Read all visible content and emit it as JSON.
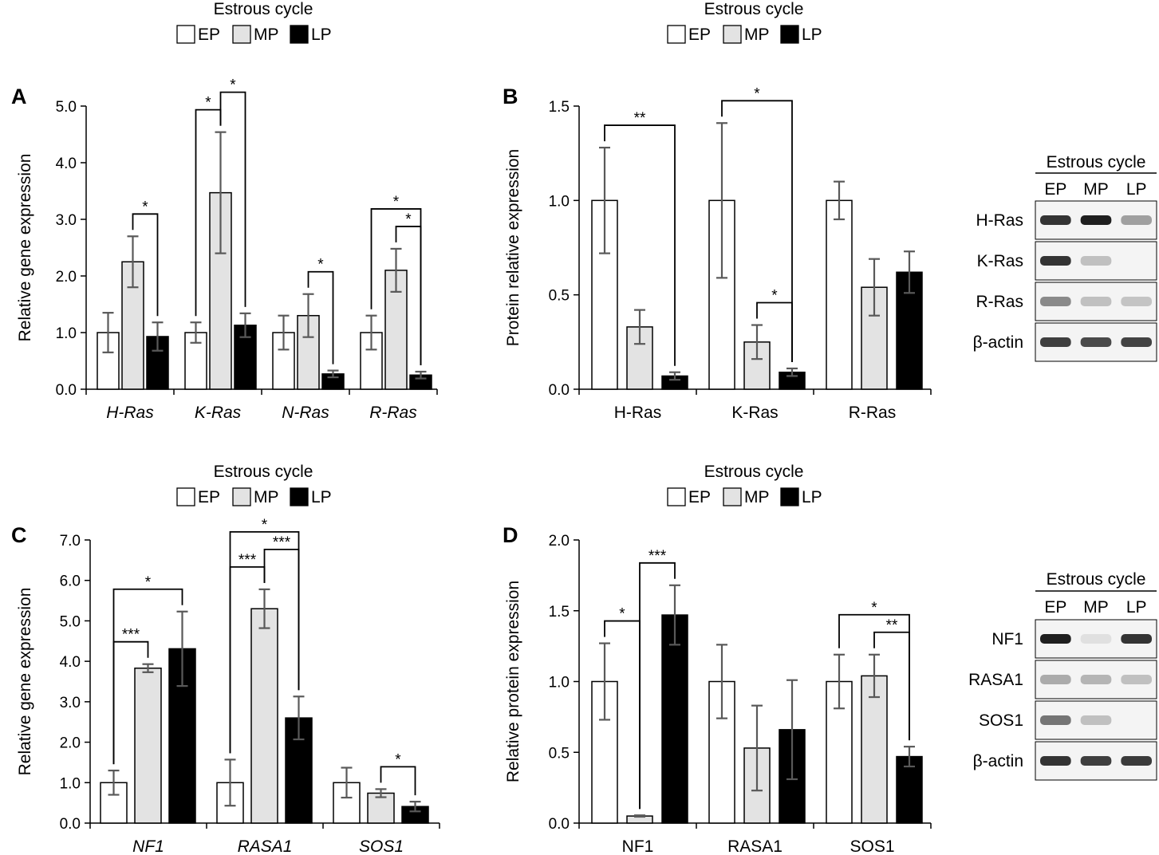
{
  "legend": {
    "title": "Estrous cycle",
    "items": [
      "EP",
      "MP",
      "LP"
    ]
  },
  "colors": {
    "EP": "#ffffff",
    "MP": "#e3e3e3",
    "LP": "#000000",
    "error_bar": "#595959",
    "outline": "#000000"
  },
  "chart_data": [
    {
      "panel": "A",
      "type": "bar",
      "ylabel": "Relative gene expression",
      "italic_categories": true,
      "categories": [
        "H-Ras",
        "K-Ras",
        "N-Ras",
        "R-Ras"
      ],
      "series": [
        {
          "name": "EP",
          "values": [
            1.0,
            1.0,
            1.0,
            1.0
          ],
          "errors": [
            0.35,
            0.18,
            0.3,
            0.3
          ]
        },
        {
          "name": "MP",
          "values": [
            2.25,
            3.47,
            1.3,
            2.1
          ],
          "errors": [
            0.45,
            1.07,
            0.38,
            0.38
          ]
        },
        {
          "name": "LP",
          "values": [
            0.93,
            1.13,
            0.27,
            0.25
          ],
          "errors": [
            0.25,
            0.21,
            0.06,
            0.06
          ]
        }
      ],
      "ylim": [
        0,
        5.0
      ],
      "yticks": [
        "0.0",
        "1.0",
        "2.0",
        "3.0",
        "4.0",
        "5.0"
      ],
      "significance": [
        {
          "category": 0,
          "from": 1,
          "to": 2,
          "label": "*"
        },
        {
          "category": 1,
          "from": 0,
          "to": 1,
          "label": "*"
        },
        {
          "category": 1,
          "from": 1,
          "to": 2,
          "label": "*"
        },
        {
          "category": 2,
          "from": 1,
          "to": 2,
          "label": "*"
        },
        {
          "category": 3,
          "from": 1,
          "to": 2,
          "label": "*"
        },
        {
          "category": 3,
          "from": 0,
          "to": 2,
          "label": "*"
        }
      ]
    },
    {
      "panel": "B",
      "type": "bar",
      "ylabel": "Protein relative expression",
      "italic_categories": false,
      "categories": [
        "H-Ras",
        "K-Ras",
        "R-Ras"
      ],
      "series": [
        {
          "name": "EP",
          "values": [
            1.0,
            1.0,
            1.0
          ],
          "errors": [
            0.28,
            0.41,
            0.1
          ]
        },
        {
          "name": "MP",
          "values": [
            0.33,
            0.25,
            0.54
          ],
          "errors": [
            0.09,
            0.09,
            0.15
          ]
        },
        {
          "name": "LP",
          "values": [
            0.07,
            0.09,
            0.62
          ],
          "errors": [
            0.02,
            0.02,
            0.11
          ]
        }
      ],
      "ylim": [
        0,
        1.5
      ],
      "yticks": [
        "0.0",
        "0.5",
        "1.0",
        "1.5"
      ],
      "significance": [
        {
          "category": 0,
          "from": 0,
          "to": 2,
          "label": "**"
        },
        {
          "category": 1,
          "from": 1,
          "to": 2,
          "label": "*"
        },
        {
          "category": 1,
          "from": 0,
          "to": 2,
          "label": "*"
        }
      ]
    },
    {
      "panel": "C",
      "type": "bar",
      "ylabel": "Relative gene expression",
      "italic_categories": true,
      "categories": [
        "NF1",
        "RASA1",
        "SOS1"
      ],
      "series": [
        {
          "name": "EP",
          "values": [
            1.0,
            1.0,
            1.0
          ],
          "errors": [
            0.3,
            0.57,
            0.37
          ]
        },
        {
          "name": "MP",
          "values": [
            3.83,
            5.3,
            0.74
          ],
          "errors": [
            0.1,
            0.48,
            0.1
          ]
        },
        {
          "name": "LP",
          "values": [
            4.31,
            2.6,
            0.41
          ],
          "errors": [
            0.92,
            0.53,
            0.12
          ]
        }
      ],
      "ylim": [
        0,
        7.0
      ],
      "yticks": [
        "0.0",
        "1.0",
        "2.0",
        "3.0",
        "4.0",
        "5.0",
        "6.0",
        "7.0"
      ],
      "significance": [
        {
          "category": 0,
          "from": 0,
          "to": 1,
          "label": "***"
        },
        {
          "category": 0,
          "from": 0,
          "to": 2,
          "label": "*"
        },
        {
          "category": 1,
          "from": 0,
          "to": 1,
          "label": "***"
        },
        {
          "category": 1,
          "from": 1,
          "to": 2,
          "label": "***"
        },
        {
          "category": 1,
          "from": 0,
          "to": 2,
          "label": "*"
        },
        {
          "category": 2,
          "from": 1,
          "to": 2,
          "label": "*"
        }
      ]
    },
    {
      "panel": "D",
      "type": "bar",
      "ylabel": "Relative protein expression",
      "italic_categories": false,
      "categories": [
        "NF1",
        "RASA1",
        "SOS1"
      ],
      "series": [
        {
          "name": "EP",
          "values": [
            1.0,
            1.0,
            1.0
          ],
          "errors": [
            0.27,
            0.26,
            0.19
          ]
        },
        {
          "name": "MP",
          "values": [
            0.05,
            0.53,
            1.04
          ],
          "errors": [
            0.005,
            0.3,
            0.15
          ]
        },
        {
          "name": "LP",
          "values": [
            1.47,
            0.66,
            0.47
          ],
          "errors": [
            0.21,
            0.35,
            0.07
          ]
        }
      ],
      "ylim": [
        0,
        2.0
      ],
      "yticks": [
        "0.0",
        "0.5",
        "1.0",
        "1.5",
        "2.0"
      ],
      "significance": [
        {
          "category": 0,
          "from": 0,
          "to": 1,
          "label": "*"
        },
        {
          "category": 0,
          "from": 1,
          "to": 2,
          "label": "***"
        },
        {
          "category": 2,
          "from": 1,
          "to": 2,
          "label": "**"
        },
        {
          "category": 2,
          "from": 0,
          "to": 2,
          "label": "*"
        }
      ]
    }
  ],
  "blots": [
    {
      "panel": "B",
      "title": "Estrous cycle",
      "lanes": [
        "EP",
        "MP",
        "LP"
      ],
      "rows": [
        {
          "label": "H-Ras",
          "intensity": [
            0.85,
            0.95,
            0.35
          ]
        },
        {
          "label": "K-Ras",
          "intensity": [
            0.85,
            0.2,
            0.0
          ]
        },
        {
          "label": "R-Ras",
          "intensity": [
            0.45,
            0.2,
            0.18
          ]
        },
        {
          "label": "β-actin",
          "intensity": [
            0.8,
            0.75,
            0.78
          ]
        }
      ]
    },
    {
      "panel": "D",
      "title": "Estrous cycle",
      "lanes": [
        "EP",
        "MP",
        "LP"
      ],
      "rows": [
        {
          "label": "NF1",
          "intensity": [
            0.95,
            0.05,
            0.85
          ]
        },
        {
          "label": "RASA1",
          "intensity": [
            0.3,
            0.25,
            0.2
          ]
        },
        {
          "label": "SOS1",
          "intensity": [
            0.55,
            0.2,
            0.0
          ]
        },
        {
          "label": "β-actin",
          "intensity": [
            0.85,
            0.8,
            0.82
          ]
        }
      ]
    }
  ]
}
